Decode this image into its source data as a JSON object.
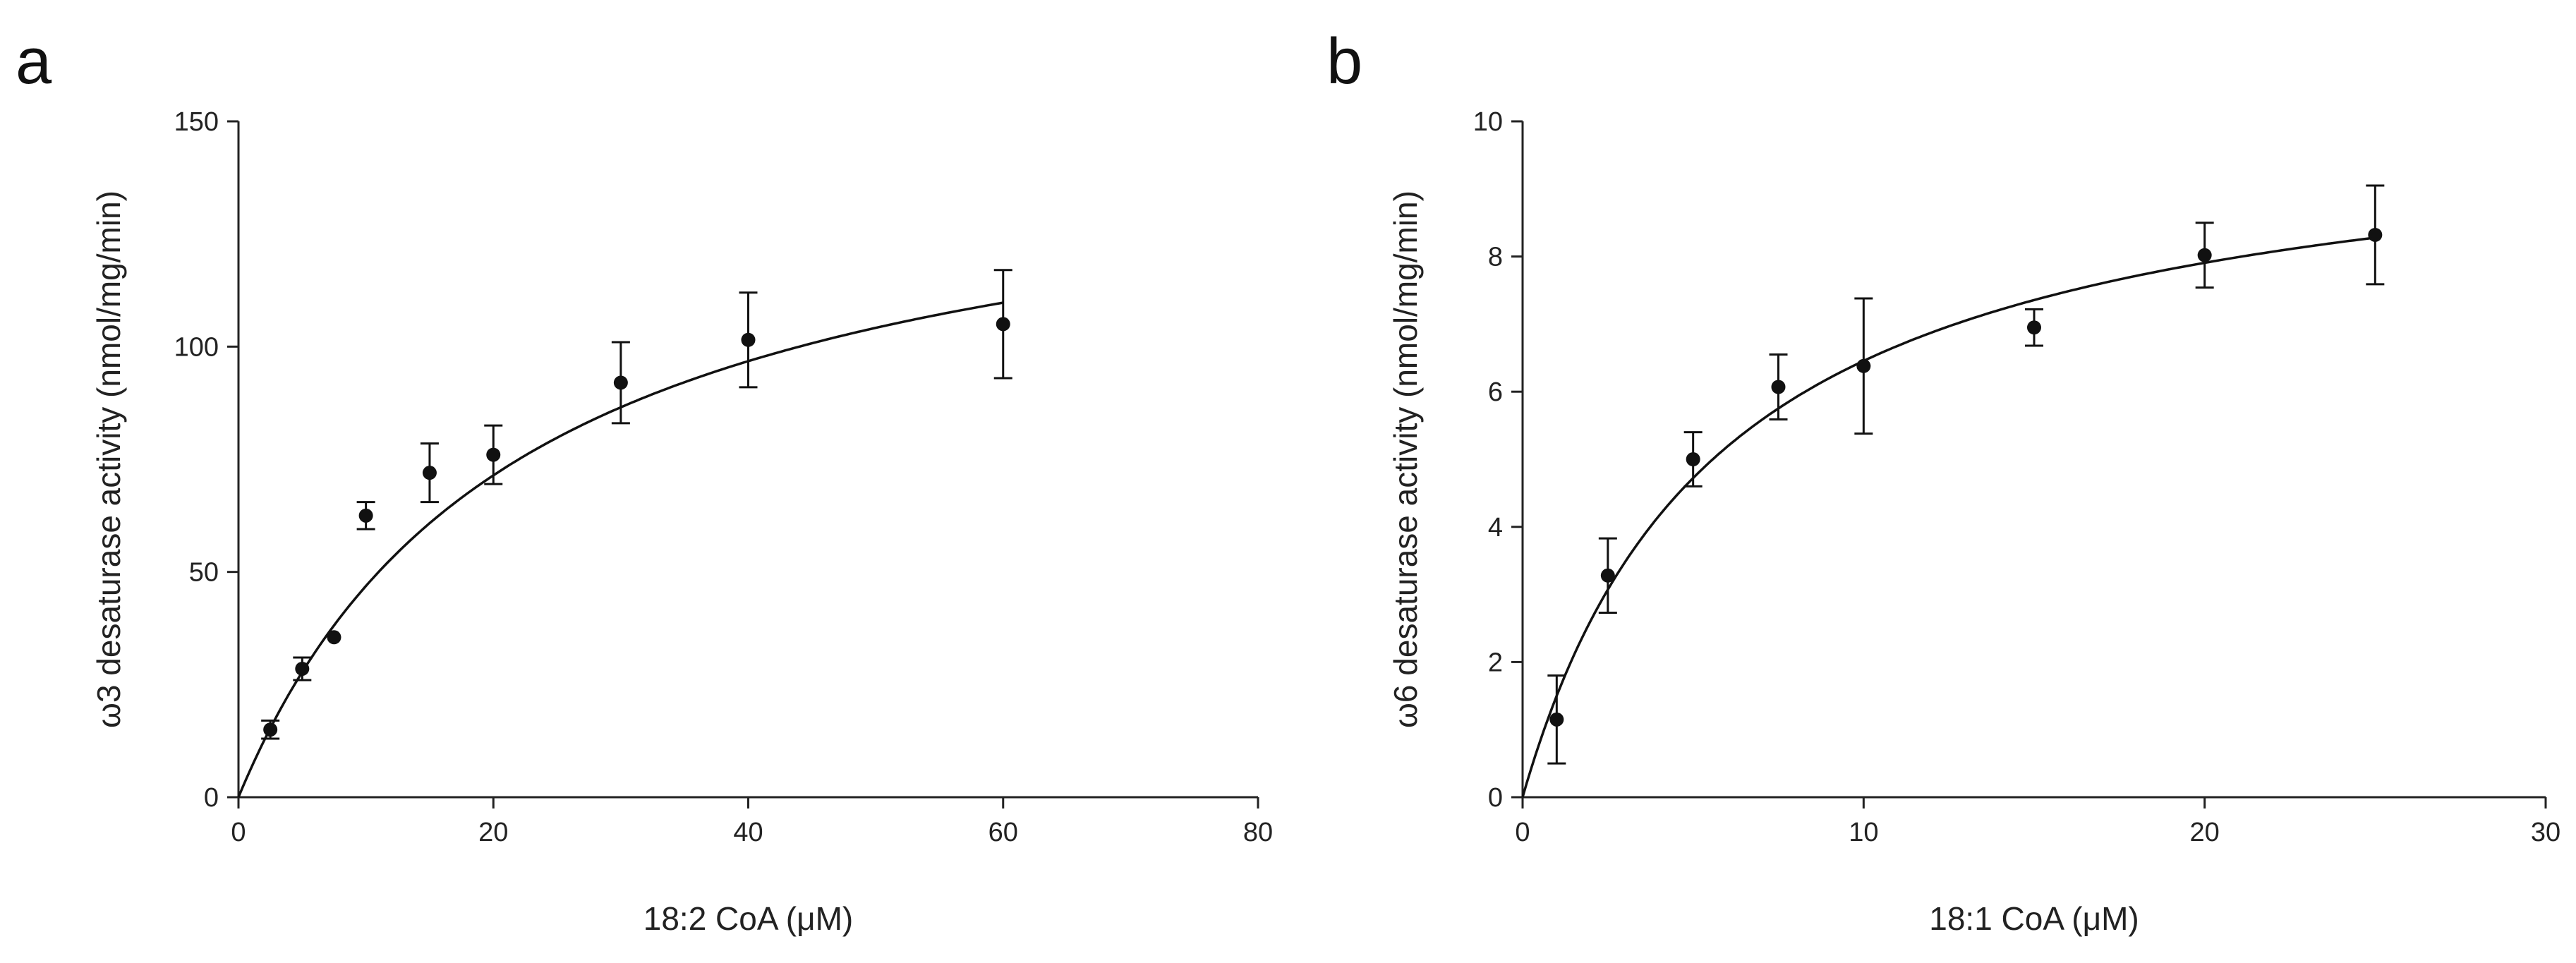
{
  "chart_data": [
    {
      "panel_label": "a",
      "type": "scatter",
      "fit": "michaelis-menten",
      "fit_params": {
        "vmax": 150,
        "km": 22
      },
      "x": [
        2.5,
        5,
        7.5,
        10,
        15,
        20,
        30,
        40,
        60
      ],
      "y": [
        15,
        28.5,
        35.5,
        62.5,
        72,
        76,
        92,
        101.5,
        105
      ],
      "error": [
        2,
        2.5,
        0,
        3,
        6.5,
        6.5,
        9,
        10.5,
        12
      ],
      "xlabel": "18:2 CoA (μM)",
      "ylabel": "ω3 desaturase activity (nmol/mg/min)",
      "xlim": [
        0,
        80
      ],
      "ylim": [
        0,
        150
      ],
      "xticks": [
        0,
        20,
        40,
        60,
        80
      ],
      "yticks": [
        0,
        50,
        100,
        150
      ],
      "color": "#111111"
    },
    {
      "panel_label": "b",
      "type": "scatter",
      "fit": "michaelis-menten",
      "fit_params": {
        "vmax": 10.2,
        "km": 5.8
      },
      "x": [
        1,
        2.5,
        5,
        7.5,
        10,
        15,
        20,
        25
      ],
      "y": [
        1.15,
        3.28,
        5.0,
        6.07,
        6.38,
        6.95,
        8.02,
        8.32
      ],
      "error": [
        0.65,
        0.55,
        0.4,
        0.48,
        1.0,
        0.27,
        0.48,
        0.73
      ],
      "xlabel": "18:1 CoA (μM)",
      "ylabel": "ω6 desaturase activity (nmol/mg/min)",
      "xlim": [
        0,
        30
      ],
      "ylim": [
        0,
        10
      ],
      "xticks": [
        0,
        10,
        20,
        30
      ],
      "yticks": [
        0,
        2,
        4,
        6,
        8,
        10
      ],
      "color": "#111111"
    }
  ]
}
